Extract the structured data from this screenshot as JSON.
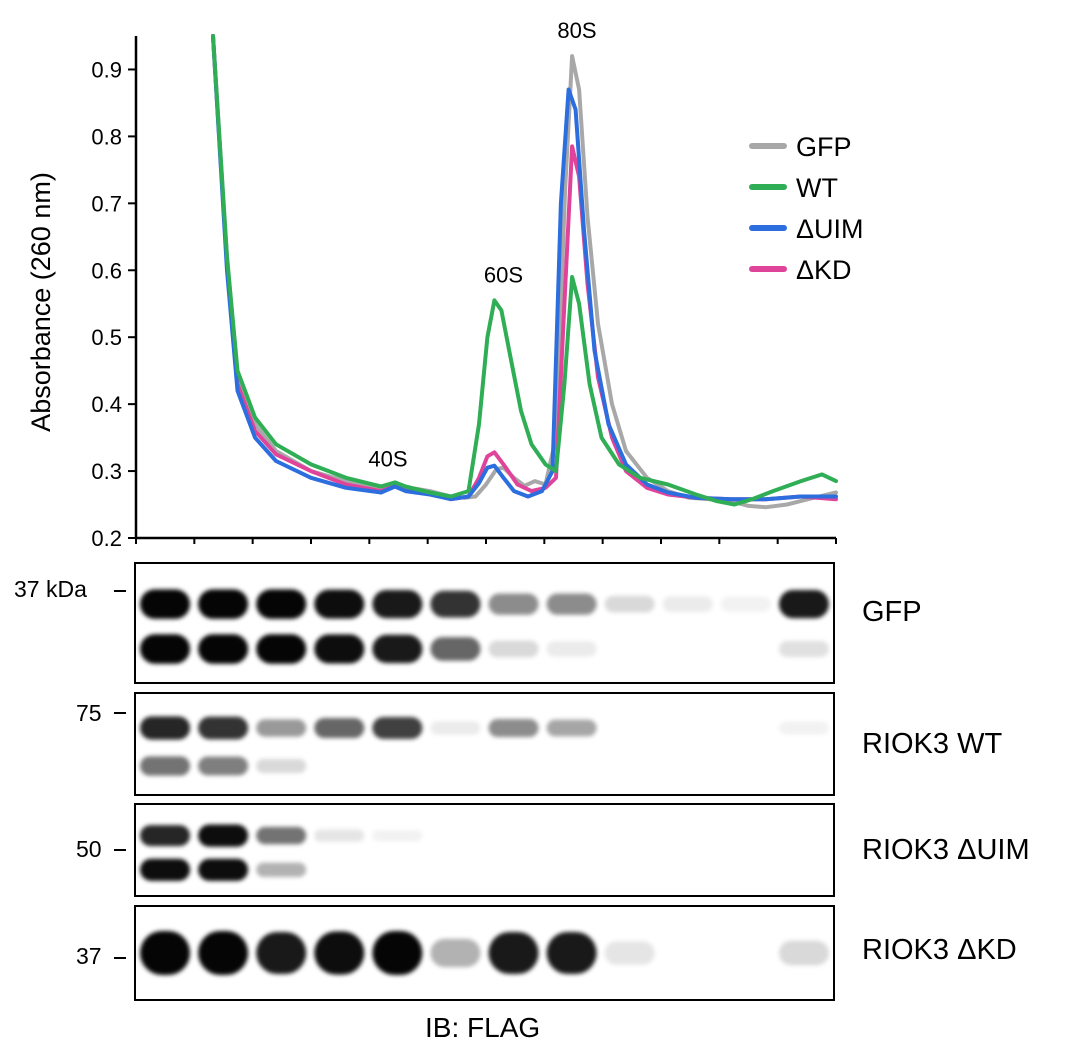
{
  "chart_data": {
    "type": "line",
    "ylabel": "Absorbance (260 nm)",
    "xlabel": "",
    "ylim": [
      0.2,
      0.95
    ],
    "xlim": [
      0,
      1
    ],
    "yticks": [
      "0.2",
      "0.3",
      "0.4",
      "0.5",
      "0.6",
      "0.7",
      "0.8",
      "0.9"
    ],
    "grid": false,
    "legend_position": "top-right",
    "legend": [
      "GFP",
      "WT",
      "ΔUIM",
      "ΔKD"
    ],
    "peak_labels": [
      {
        "text": "40S",
        "x": 0.36,
        "y": 0.28
      },
      {
        "text": "60S",
        "x": 0.525,
        "y": 0.555
      },
      {
        "text": "80S",
        "x": 0.63,
        "y": 0.92
      }
    ],
    "series": [
      {
        "name": "GFP",
        "color": "#a8a8a8",
        "points": [
          [
            0.11,
            0.95
          ],
          [
            0.13,
            0.62
          ],
          [
            0.145,
            0.44
          ],
          [
            0.17,
            0.37
          ],
          [
            0.2,
            0.33
          ],
          [
            0.25,
            0.3
          ],
          [
            0.3,
            0.285
          ],
          [
            0.35,
            0.275
          ],
          [
            0.37,
            0.282
          ],
          [
            0.385,
            0.276
          ],
          [
            0.42,
            0.27
          ],
          [
            0.45,
            0.262
          ],
          [
            0.47,
            0.26
          ],
          [
            0.485,
            0.262
          ],
          [
            0.5,
            0.28
          ],
          [
            0.515,
            0.303
          ],
          [
            0.525,
            0.305
          ],
          [
            0.54,
            0.29
          ],
          [
            0.555,
            0.278
          ],
          [
            0.57,
            0.285
          ],
          [
            0.585,
            0.28
          ],
          [
            0.6,
            0.35
          ],
          [
            0.613,
            0.72
          ],
          [
            0.623,
            0.92
          ],
          [
            0.633,
            0.87
          ],
          [
            0.645,
            0.68
          ],
          [
            0.66,
            0.52
          ],
          [
            0.68,
            0.4
          ],
          [
            0.7,
            0.33
          ],
          [
            0.73,
            0.29
          ],
          [
            0.76,
            0.27
          ],
          [
            0.79,
            0.26
          ],
          [
            0.82,
            0.258
          ],
          [
            0.85,
            0.255
          ],
          [
            0.875,
            0.248
          ],
          [
            0.9,
            0.246
          ],
          [
            0.93,
            0.25
          ],
          [
            0.96,
            0.258
          ],
          [
            1.0,
            0.268
          ]
        ]
      },
      {
        "name": "WT",
        "color": "#2fae55",
        "points": [
          [
            0.11,
            0.95
          ],
          [
            0.13,
            0.62
          ],
          [
            0.145,
            0.45
          ],
          [
            0.17,
            0.38
          ],
          [
            0.2,
            0.34
          ],
          [
            0.25,
            0.31
          ],
          [
            0.3,
            0.29
          ],
          [
            0.35,
            0.277
          ],
          [
            0.37,
            0.283
          ],
          [
            0.385,
            0.277
          ],
          [
            0.42,
            0.268
          ],
          [
            0.45,
            0.262
          ],
          [
            0.475,
            0.27
          ],
          [
            0.49,
            0.37
          ],
          [
            0.502,
            0.5
          ],
          [
            0.512,
            0.555
          ],
          [
            0.522,
            0.54
          ],
          [
            0.535,
            0.47
          ],
          [
            0.55,
            0.39
          ],
          [
            0.565,
            0.34
          ],
          [
            0.585,
            0.31
          ],
          [
            0.6,
            0.3
          ],
          [
            0.612,
            0.43
          ],
          [
            0.623,
            0.59
          ],
          [
            0.633,
            0.55
          ],
          [
            0.648,
            0.43
          ],
          [
            0.665,
            0.35
          ],
          [
            0.69,
            0.31
          ],
          [
            0.72,
            0.29
          ],
          [
            0.76,
            0.28
          ],
          [
            0.8,
            0.265
          ],
          [
            0.83,
            0.255
          ],
          [
            0.855,
            0.25
          ],
          [
            0.88,
            0.258
          ],
          [
            0.91,
            0.27
          ],
          [
            0.95,
            0.285
          ],
          [
            0.98,
            0.295
          ],
          [
            1.0,
            0.285
          ]
        ]
      },
      {
        "name": "ΔUIM",
        "color": "#2c6ede",
        "points": [
          [
            0.11,
            0.95
          ],
          [
            0.13,
            0.6
          ],
          [
            0.145,
            0.42
          ],
          [
            0.17,
            0.35
          ],
          [
            0.2,
            0.315
          ],
          [
            0.25,
            0.29
          ],
          [
            0.3,
            0.275
          ],
          [
            0.35,
            0.268
          ],
          [
            0.37,
            0.277
          ],
          [
            0.385,
            0.27
          ],
          [
            0.42,
            0.265
          ],
          [
            0.45,
            0.258
          ],
          [
            0.475,
            0.262
          ],
          [
            0.49,
            0.282
          ],
          [
            0.502,
            0.305
          ],
          [
            0.512,
            0.308
          ],
          [
            0.525,
            0.29
          ],
          [
            0.54,
            0.27
          ],
          [
            0.56,
            0.262
          ],
          [
            0.58,
            0.27
          ],
          [
            0.595,
            0.3
          ],
          [
            0.607,
            0.7
          ],
          [
            0.618,
            0.87
          ],
          [
            0.628,
            0.84
          ],
          [
            0.64,
            0.66
          ],
          [
            0.655,
            0.48
          ],
          [
            0.675,
            0.37
          ],
          [
            0.7,
            0.31
          ],
          [
            0.73,
            0.28
          ],
          [
            0.76,
            0.268
          ],
          [
            0.8,
            0.26
          ],
          [
            0.85,
            0.258
          ],
          [
            0.9,
            0.258
          ],
          [
            0.95,
            0.262
          ],
          [
            1.0,
            0.262
          ]
        ]
      },
      {
        "name": "ΔKD",
        "color": "#e0449a",
        "points": [
          [
            0.11,
            0.95
          ],
          [
            0.13,
            0.61
          ],
          [
            0.145,
            0.43
          ],
          [
            0.17,
            0.36
          ],
          [
            0.2,
            0.325
          ],
          [
            0.25,
            0.3
          ],
          [
            0.3,
            0.28
          ],
          [
            0.35,
            0.27
          ],
          [
            0.37,
            0.278
          ],
          [
            0.385,
            0.272
          ],
          [
            0.42,
            0.266
          ],
          [
            0.45,
            0.258
          ],
          [
            0.475,
            0.262
          ],
          [
            0.49,
            0.29
          ],
          [
            0.502,
            0.322
          ],
          [
            0.512,
            0.328
          ],
          [
            0.525,
            0.31
          ],
          [
            0.545,
            0.28
          ],
          [
            0.565,
            0.27
          ],
          [
            0.585,
            0.275
          ],
          [
            0.6,
            0.29
          ],
          [
            0.612,
            0.55
          ],
          [
            0.623,
            0.785
          ],
          [
            0.633,
            0.74
          ],
          [
            0.645,
            0.58
          ],
          [
            0.66,
            0.44
          ],
          [
            0.68,
            0.35
          ],
          [
            0.7,
            0.3
          ],
          [
            0.73,
            0.275
          ],
          [
            0.76,
            0.265
          ],
          [
            0.8,
            0.26
          ],
          [
            0.85,
            0.258
          ],
          [
            0.9,
            0.258
          ],
          [
            0.95,
            0.262
          ],
          [
            1.0,
            0.258
          ]
        ]
      }
    ]
  },
  "blots": [
    {
      "label": "GFP",
      "marker": "37 kDa",
      "dark": [
        0.98,
        0.98,
        0.98,
        0.95,
        0.9,
        0.8,
        0.45,
        0.45,
        0.15,
        0.08,
        0.05,
        0.9
      ],
      "lower": [
        0.98,
        0.98,
        0.98,
        0.95,
        0.9,
        0.6,
        0.15,
        0.08,
        0,
        0,
        0,
        0.12
      ]
    },
    {
      "label": "RIOK3 WT",
      "marker": "75",
      "dark": [
        0.85,
        0.8,
        0.4,
        0.6,
        0.75,
        0.08,
        0.45,
        0.35,
        0,
        0,
        0,
        0.05
      ],
      "lower": [
        0.55,
        0.5,
        0.15,
        0,
        0,
        0,
        0,
        0,
        0,
        0,
        0,
        0
      ]
    },
    {
      "label": "RIOK3 ΔUIM",
      "marker": "50",
      "dark": [
        0.85,
        0.95,
        0.55,
        0.1,
        0.05,
        0,
        0,
        0,
        0,
        0,
        0,
        0
      ],
      "lower": [
        0.95,
        0.95,
        0.3,
        0,
        0,
        0,
        0,
        0,
        0,
        0,
        0,
        0
      ]
    },
    {
      "label": "RIOK3 ΔKD",
      "marker": "37",
      "dark": [
        0.98,
        0.98,
        0.9,
        0.95,
        0.98,
        0.3,
        0.9,
        0.9,
        0.1,
        0,
        0,
        0.15
      ],
      "lower": []
    }
  ],
  "footer": "IB: FLAG"
}
